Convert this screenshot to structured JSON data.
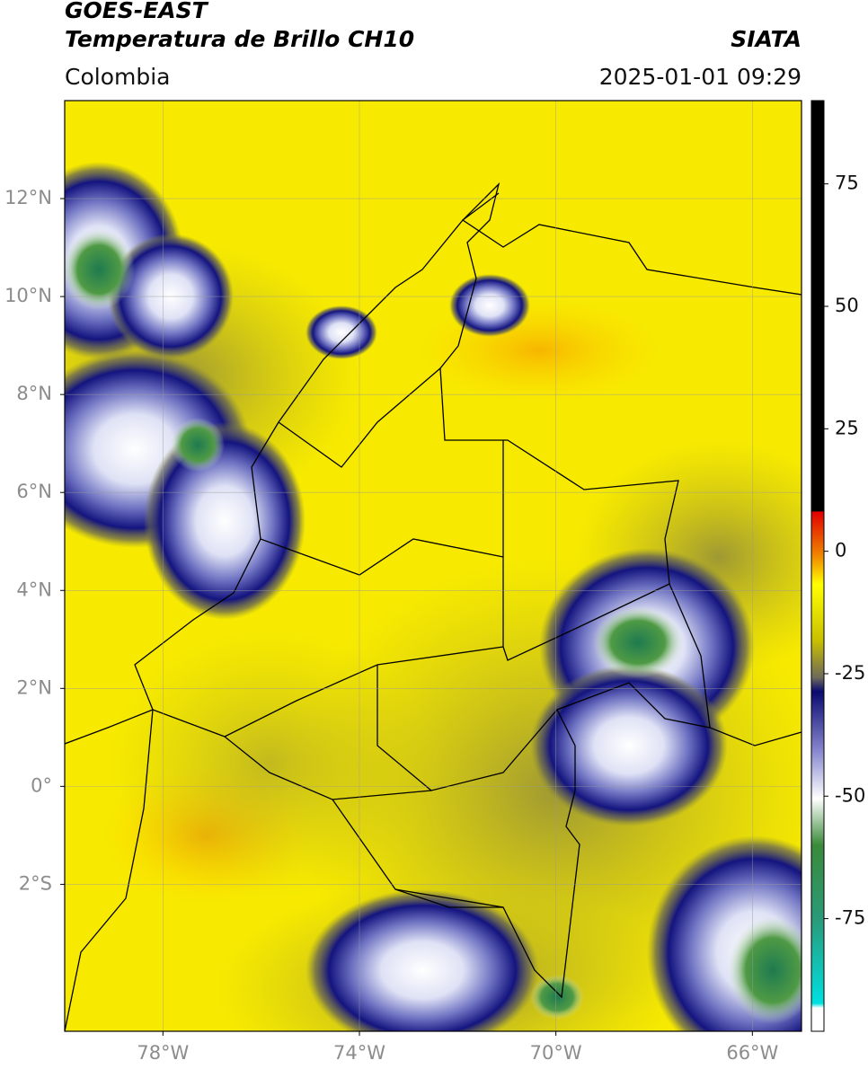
{
  "header": {
    "satellite": "GOES-EAST",
    "product": "Temperatura de Brillo CH10",
    "source": "SIATA",
    "region": "Colombia",
    "datetime": "2025-01-01 09:29"
  },
  "map": {
    "xlim": [
      -80,
      -65
    ],
    "ylim": [
      -5,
      14
    ],
    "xticks": [
      {
        "value": -78,
        "label": "78°W"
      },
      {
        "value": -74,
        "label": "74°W"
      },
      {
        "value": -70,
        "label": "70°W"
      },
      {
        "value": -66,
        "label": "66°W"
      }
    ],
    "yticks": [
      {
        "value": -2,
        "label": "2°S"
      },
      {
        "value": 0,
        "label": "0°"
      },
      {
        "value": 2,
        "label": "2°N"
      },
      {
        "value": 4,
        "label": "4°N"
      },
      {
        "value": 6,
        "label": "6°N"
      },
      {
        "value": 8,
        "label": "8°N"
      },
      {
        "value": 10,
        "label": "10°N"
      },
      {
        "value": 12,
        "label": "12°N"
      }
    ],
    "grid": true
  },
  "colorbar": {
    "lim": [
      -98,
      92
    ],
    "ticks": [
      75,
      50,
      25,
      0,
      -25,
      -50,
      -75
    ]
  }
}
